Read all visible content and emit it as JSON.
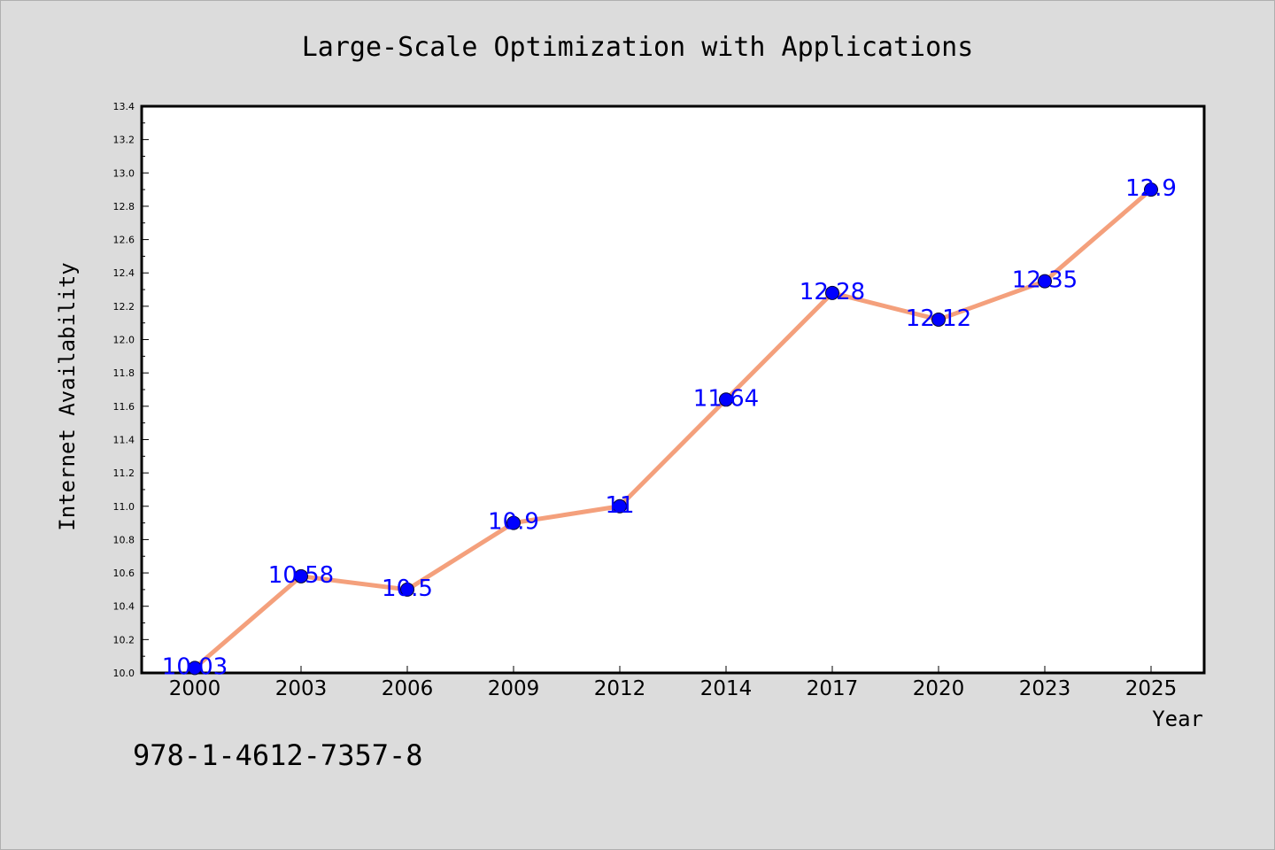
{
  "chart_data": {
    "type": "line",
    "title": "Large-Scale Optimization with Applications",
    "xlabel": "Year",
    "ylabel": "Internet Availability",
    "categories": [
      "2000",
      "2003",
      "2006",
      "2009",
      "2012",
      "2014",
      "2017",
      "2020",
      "2023",
      "2025"
    ],
    "series": [
      {
        "values": [
          10.03,
          10.58,
          10.5,
          10.9,
          11,
          11.64,
          12.28,
          12.12,
          12.35,
          12.9
        ],
        "labels": [
          "10.03",
          "10.58",
          "10.5",
          "10.9",
          "11",
          "11.64",
          "12.28",
          "12.12",
          "12.35",
          "12.9"
        ]
      }
    ],
    "ylim": [
      10.0,
      13.4
    ],
    "yticks": [
      "10.0",
      "10.2",
      "10.4",
      "10.6",
      "10.8",
      "11.0",
      "11.2",
      "11.4",
      "11.6",
      "11.8",
      "12.0",
      "12.2",
      "12.4",
      "12.6",
      "12.8",
      "13.0",
      "13.2",
      "13.4"
    ],
    "grid": false,
    "legend": "none"
  },
  "footer": {
    "isbn": "978-1-4612-7357-8"
  },
  "colors": {
    "background": "#dcdcdc",
    "plot_area": "#ffffff",
    "line": "#f4a07c",
    "marker": "#0000ff",
    "data_label": "#0000ff"
  }
}
